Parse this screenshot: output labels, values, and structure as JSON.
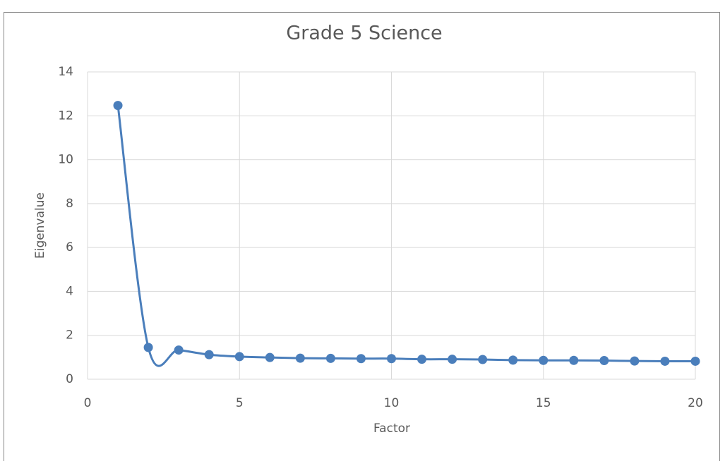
{
  "chart_data": {
    "type": "line",
    "title": "Grade 5 Science",
    "x_label": "Factor",
    "y_label": "Eigenvalue",
    "x": [
      1,
      2,
      3,
      4,
      5,
      6,
      7,
      8,
      9,
      10,
      11,
      12,
      13,
      14,
      15,
      16,
      17,
      18,
      19,
      20
    ],
    "series": [
      {
        "color": "#4a7ebb",
        "values": [
          12.47,
          1.45,
          1.33,
          1.12,
          1.03,
          0.99,
          0.96,
          0.95,
          0.94,
          0.94,
          0.91,
          0.91,
          0.9,
          0.87,
          0.86,
          0.86,
          0.85,
          0.83,
          0.82,
          0.82
        ]
      }
    ],
    "xlim": [
      0,
      20
    ],
    "xticks": [
      0,
      5,
      10,
      15,
      20
    ],
    "ylim": [
      0,
      14
    ],
    "yticks": [
      0,
      2,
      4,
      6,
      8,
      10,
      12,
      14
    ],
    "grid": true,
    "smooth": true,
    "markers": true
  }
}
